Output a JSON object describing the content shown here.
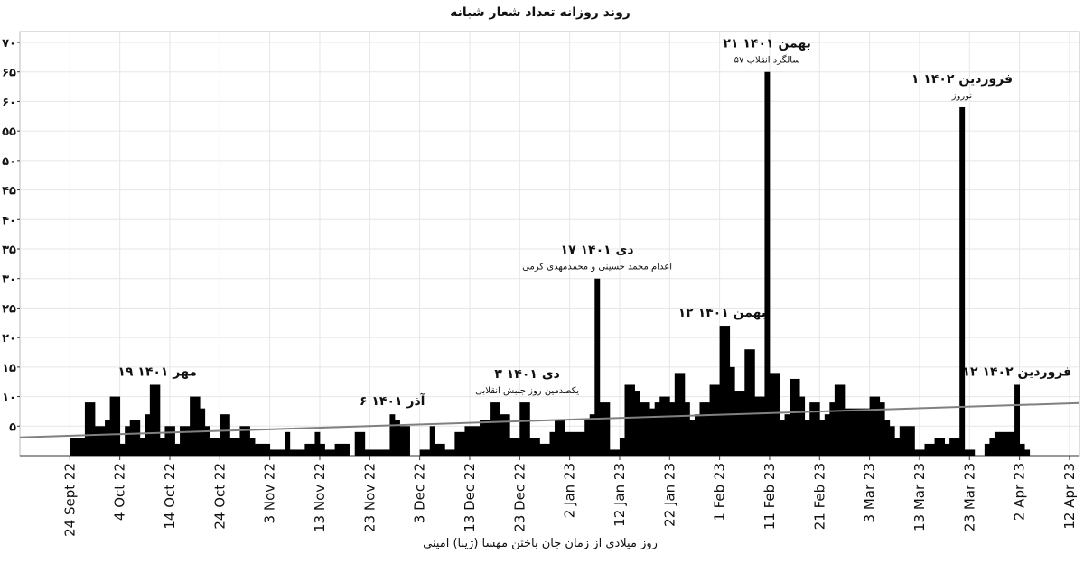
{
  "chart_data": {
    "type": "bar",
    "title": "روند روزانه تعداد شعار شبانه",
    "x_label": "روز میلادی از زمان جان باختن مهسا (ژینا) امینی",
    "color": "#000000",
    "grid": true,
    "xlim": [
      "2022-09-14",
      "2023-04-14"
    ],
    "ylim": [
      0,
      70
    ],
    "yticks": [
      {
        "value": 5,
        "label": "۵"
      },
      {
        "value": 10,
        "label": "۱۰"
      },
      {
        "value": 15,
        "label": "۱۵"
      },
      {
        "value": 20,
        "label": "۲۰"
      },
      {
        "value": 25,
        "label": "۲۵"
      },
      {
        "value": 30,
        "label": "۳۰"
      },
      {
        "value": 35,
        "label": "۳۵"
      },
      {
        "value": 40,
        "label": "۴۰"
      },
      {
        "value": 45,
        "label": "۴۵"
      },
      {
        "value": 50,
        "label": "۵۰"
      },
      {
        "value": 55,
        "label": "۵۵"
      },
      {
        "value": 60,
        "label": "۶۰"
      },
      {
        "value": 65,
        "label": "۶۵"
      },
      {
        "value": 70,
        "label": "۷۰"
      }
    ],
    "xticks": [
      {
        "value": "2022-09-24",
        "label": "24 Sept 22"
      },
      {
        "value": "2022-10-04",
        "label": "4 Oct 22"
      },
      {
        "value": "2022-10-14",
        "label": "14 Oct 22"
      },
      {
        "value": "2022-10-24",
        "label": "24 Oct 22"
      },
      {
        "value": "2022-11-03",
        "label": "3 Nov 22"
      },
      {
        "value": "2022-11-13",
        "label": "13 Nov 22"
      },
      {
        "value": "2022-11-23",
        "label": "23 Nov 22"
      },
      {
        "value": "2022-12-03",
        "label": "3 Dec 22"
      },
      {
        "value": "2022-12-13",
        "label": "13 Dec 22"
      },
      {
        "value": "2022-12-23",
        "label": "23 Dec 22"
      },
      {
        "value": "2023-01-02",
        "label": "2 Jan 23"
      },
      {
        "value": "2023-01-12",
        "label": "12 Jan 23"
      },
      {
        "value": "2023-01-22",
        "label": "22 Jan 23"
      },
      {
        "value": "2023-02-01",
        "label": "1 Feb 23"
      },
      {
        "value": "2023-02-11",
        "label": "11 Feb 23"
      },
      {
        "value": "2023-02-21",
        "label": "21 Feb 23"
      },
      {
        "value": "2023-03-03",
        "label": "3 Mar 23"
      },
      {
        "value": "2023-03-13",
        "label": "13 Mar 23"
      },
      {
        "value": "2023-03-23",
        "label": "23 Mar 23"
      },
      {
        "value": "2023-04-02",
        "label": "2 Apr 23"
      },
      {
        "value": "2023-04-12",
        "label": "12 Apr 23"
      }
    ],
    "x": [
      "2022-09-24",
      "2022-09-25",
      "2022-09-26",
      "2022-09-27",
      "2022-09-28",
      "2022-09-29",
      "2022-09-30",
      "2022-10-01",
      "2022-10-02",
      "2022-10-03",
      "2022-10-04",
      "2022-10-05",
      "2022-10-06",
      "2022-10-07",
      "2022-10-08",
      "2022-10-09",
      "2022-10-10",
      "2022-10-11",
      "2022-10-12",
      "2022-10-13",
      "2022-10-14",
      "2022-10-15",
      "2022-10-16",
      "2022-10-17",
      "2022-10-18",
      "2022-10-19",
      "2022-10-20",
      "2022-10-21",
      "2022-10-22",
      "2022-10-23",
      "2022-10-24",
      "2022-10-25",
      "2022-10-26",
      "2022-10-27",
      "2022-10-28",
      "2022-10-29",
      "2022-10-30",
      "2022-10-31",
      "2022-11-01",
      "2022-11-02",
      "2022-11-03",
      "2022-11-04",
      "2022-11-05",
      "2022-11-06",
      "2022-11-07",
      "2022-11-08",
      "2022-11-09",
      "2022-11-10",
      "2022-11-11",
      "2022-11-12",
      "2022-11-13",
      "2022-11-14",
      "2022-11-15",
      "2022-11-16",
      "2022-11-17",
      "2022-11-18",
      "2022-11-19",
      "2022-11-20",
      "2022-11-21",
      "2022-11-22",
      "2022-11-23",
      "2022-11-24",
      "2022-11-25",
      "2022-11-26",
      "2022-11-27",
      "2022-11-28",
      "2022-11-29",
      "2022-11-30",
      "2022-12-01",
      "2022-12-02",
      "2022-12-03",
      "2022-12-04",
      "2022-12-05",
      "2022-12-06",
      "2022-12-07",
      "2022-12-08",
      "2022-12-09",
      "2022-12-10",
      "2022-12-11",
      "2022-12-12",
      "2022-12-13",
      "2022-12-14",
      "2022-12-15",
      "2022-12-16",
      "2022-12-17",
      "2022-12-18",
      "2022-12-19",
      "2022-12-20",
      "2022-12-21",
      "2022-12-22",
      "2022-12-23",
      "2022-12-24",
      "2022-12-25",
      "2022-12-26",
      "2022-12-27",
      "2022-12-28",
      "2022-12-29",
      "2022-12-30",
      "2022-12-31",
      "2023-01-01",
      "2023-01-02",
      "2023-01-03",
      "2023-01-04",
      "2023-01-05",
      "2023-01-06",
      "2023-01-07",
      "2023-01-08",
      "2023-01-09",
      "2023-01-10",
      "2023-01-11",
      "2023-01-12",
      "2023-01-13",
      "2023-01-14",
      "2023-01-15",
      "2023-01-16",
      "2023-01-17",
      "2023-01-18",
      "2023-01-19",
      "2023-01-20",
      "2023-01-21",
      "2023-01-22",
      "2023-01-23",
      "2023-01-24",
      "2023-01-25",
      "2023-01-26",
      "2023-01-27",
      "2023-01-28",
      "2023-01-29",
      "2023-01-30",
      "2023-01-31",
      "2023-02-01",
      "2023-02-02",
      "2023-02-03",
      "2023-02-04",
      "2023-02-05",
      "2023-02-06",
      "2023-02-07",
      "2023-02-08",
      "2023-02-09",
      "2023-02-10",
      "2023-02-11",
      "2023-02-12",
      "2023-02-13",
      "2023-02-14",
      "2023-02-15",
      "2023-02-16",
      "2023-02-17",
      "2023-02-18",
      "2023-02-19",
      "2023-02-20",
      "2023-02-21",
      "2023-02-22",
      "2023-02-23",
      "2023-02-24",
      "2023-02-25",
      "2023-02-26",
      "2023-02-27",
      "2023-02-28",
      "2023-03-01",
      "2023-03-02",
      "2023-03-03",
      "2023-03-04",
      "2023-03-05",
      "2023-03-06",
      "2023-03-07",
      "2023-03-08",
      "2023-03-09",
      "2023-03-10",
      "2023-03-11",
      "2023-03-12",
      "2023-03-13",
      "2023-03-14",
      "2023-03-15",
      "2023-03-16",
      "2023-03-17",
      "2023-03-18",
      "2023-03-19",
      "2023-03-20",
      "2023-03-21",
      "2023-03-22",
      "2023-03-23",
      "2023-03-24",
      "2023-03-25",
      "2023-03-26",
      "2023-03-27",
      "2023-03-28",
      "2023-03-29",
      "2023-03-30",
      "2023-03-31",
      "2023-04-01",
      "2023-04-02",
      "2023-04-03"
    ],
    "values": [
      3,
      3,
      3,
      9,
      9,
      5,
      5,
      6,
      10,
      10,
      2,
      5,
      6,
      6,
      3,
      7,
      12,
      12,
      3,
      5,
      5,
      2,
      5,
      5,
      10,
      10,
      8,
      5,
      3,
      3,
      7,
      7,
      3,
      3,
      5,
      5,
      3,
      2,
      2,
      2,
      1,
      1,
      1,
      4,
      1,
      1,
      1,
      2,
      2,
      4,
      2,
      1,
      1,
      2,
      2,
      2,
      0,
      4,
      4,
      1,
      1,
      1,
      1,
      1,
      7,
      6,
      5,
      5,
      0,
      0,
      1,
      1,
      5,
      2,
      2,
      1,
      1,
      4,
      4,
      5,
      5,
      5,
      6,
      6,
      9,
      9,
      7,
      7,
      3,
      3,
      9,
      9,
      3,
      3,
      2,
      2,
      4,
      6,
      6,
      4,
      4,
      4,
      4,
      6,
      7,
      30,
      9,
      9,
      1,
      1,
      3,
      12,
      12,
      11,
      9,
      9,
      8,
      9,
      10,
      10,
      9,
      14,
      14,
      9,
      6,
      7,
      9,
      9,
      12,
      12,
      22,
      22,
      15,
      11,
      11,
      18,
      18,
      10,
      10,
      65,
      14,
      14,
      6,
      7,
      13,
      13,
      10,
      6,
      9,
      9,
      6,
      7,
      9,
      12,
      12,
      8,
      8,
      8,
      8,
      8,
      10,
      10,
      9,
      6,
      5,
      3,
      5,
      5,
      5,
      1,
      1,
      2,
      2,
      3,
      3,
      2,
      3,
      3,
      59,
      1,
      1,
      0,
      0,
      2,
      3,
      4,
      4,
      4,
      4,
      12,
      2,
      1
    ],
    "trend": {
      "x": [
        "2022-09-14",
        "2023-04-14"
      ],
      "values": [
        3.1,
        8.9
      ],
      "color": "#808080"
    },
    "annotations": [
      {
        "x": "2022-10-11",
        "title": "۱۹ مهر ۱۴۰۱"
      },
      {
        "x": "2022-11-27",
        "title": "۶ آذر ۱۴۰۱"
      },
      {
        "x": "2022-12-24",
        "title": "۳ دی ۱۴۰۱",
        "subtitle": "یکصدمین روز جنبش انقلابی"
      },
      {
        "x": "2023-01-07",
        "title": "۱۷ دی ۱۴۰۱",
        "subtitle": "اعدام محمد حسینی و محمدمهدی کرمی"
      },
      {
        "x": "2023-02-01",
        "title": "۱۲ بهمن ۱۴۰۱"
      },
      {
        "x": "2023-02-10",
        "title": "۲۱ بهمن ۱۴۰۱",
        "subtitle": "سالگرد انقلاب ۵۷"
      },
      {
        "x": "2023-03-21",
        "title": "۱ فروردین ۱۴۰۲",
        "subtitle": "نوروز"
      },
      {
        "x": "2023-04-01",
        "title": "۱۲ فروردین ۱۴۰۲"
      }
    ]
  }
}
